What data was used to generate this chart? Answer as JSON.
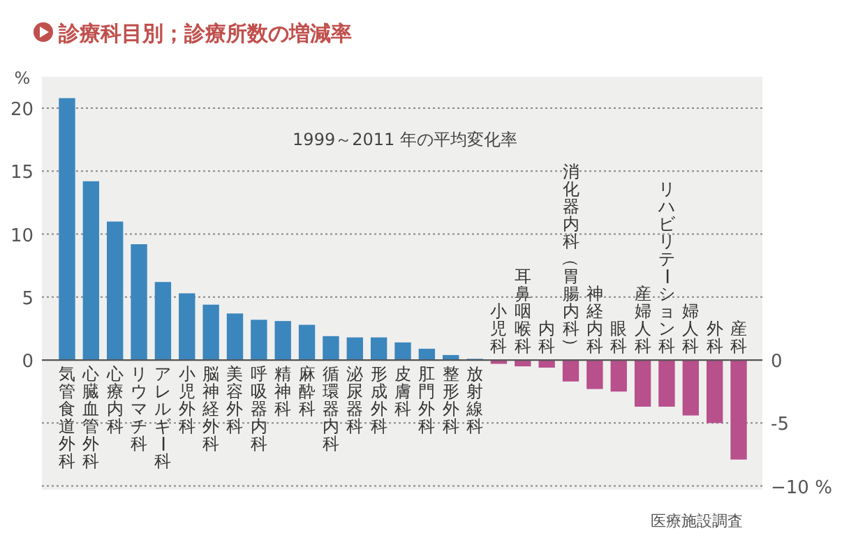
{
  "chart_data": {
    "type": "bar",
    "title": "診療科目別；診療所数の増減率",
    "ylabel": "%",
    "categories": [
      "気管食道外科",
      "心臓血管外科",
      "心療内科",
      "リウマチ科",
      "アレルギー科",
      "小児外科",
      "脳神経外科",
      "美容外科",
      "呼吸器内科",
      "精神科",
      "麻酔科",
      "循環器内科",
      "泌尿器科",
      "形成外科",
      "皮膚科",
      "肛門外科",
      "整形外科",
      "放射線科",
      "小児科",
      "耳鼻咽喉科",
      "内科",
      "消化器内科（胃腸内科）",
      "神経内科",
      "眼科",
      "産婦人科",
      "リハビリテーション科",
      "婦人科",
      "外科",
      "産科"
    ],
    "values": [
      20.8,
      14.2,
      11.0,
      9.2,
      6.2,
      5.3,
      4.4,
      3.7,
      3.2,
      3.1,
      2.8,
      1.9,
      1.8,
      1.8,
      1.4,
      0.9,
      0.4,
      0.1,
      -0.3,
      -0.5,
      -0.6,
      -1.7,
      -2.3,
      -2.5,
      -3.7,
      -3.7,
      -4.4,
      -5.0,
      -7.9
    ],
    "colors": [
      "#3b86bd",
      "#3b86bd",
      "#3b86bd",
      "#3b86bd",
      "#3b86bd",
      "#3b86bd",
      "#3b86bd",
      "#3b86bd",
      "#3b86bd",
      "#3b86bd",
      "#3b86bd",
      "#3b86bd",
      "#3b86bd",
      "#3b86bd",
      "#3b86bd",
      "#3b86bd",
      "#3b86bd",
      "#3b86bd",
      "#b8508c",
      "#b8508c",
      "#b8508c",
      "#b8508c",
      "#b8508c",
      "#b8508c",
      "#b8508c",
      "#b8508c",
      "#b8508c",
      "#b8508c",
      "#b8508c"
    ],
    "ylim": [
      -10.3,
      22.5
    ],
    "yticks": [
      0,
      5,
      10,
      15,
      20
    ],
    "y2lim": [
      -10.3,
      22.5
    ],
    "y2ticks": [
      0,
      -5,
      {
        "value": -10,
        "label": "−10 %"
      }
    ],
    "grid": "y",
    "annotations": [
      "1999～2011 年の平均変化率",
      "医療施設調査"
    ]
  }
}
